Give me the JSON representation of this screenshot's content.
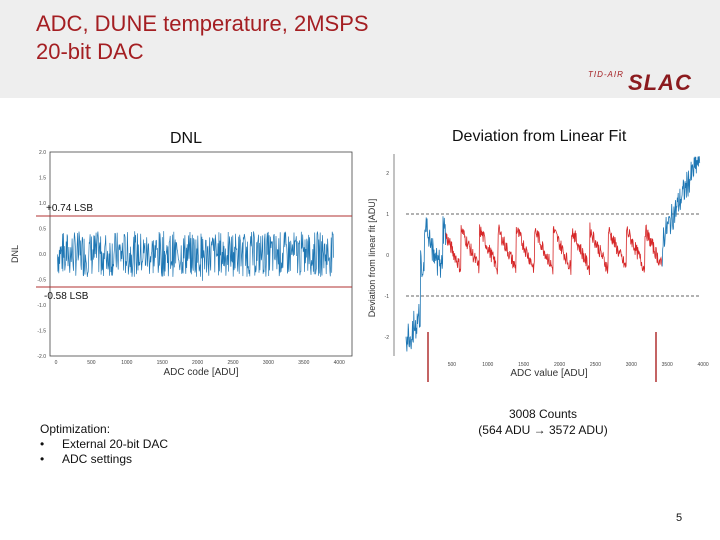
{
  "slide": {
    "title": "ADC, DUNE temperature, 2MSPS\n20-bit DAC",
    "logo_sub": "TID-AIR",
    "logo_main": "SLAC",
    "page_number": "5",
    "colors": {
      "title": "#a41e22",
      "blue": "#1f77b4",
      "red": "#d62728",
      "guide_line": "#b03030"
    }
  },
  "dnl": {
    "title": "DNL",
    "upper_label": "+0.74 LSB",
    "lower_label": "-0.58 LSB"
  },
  "fit": {
    "title": "Deviation from Linear Fit"
  },
  "notes": {
    "heading": "Optimization:",
    "items": [
      "External 20-bit DAC",
      "ADC settings"
    ]
  },
  "range": {
    "line1": "3008 Counts",
    "line2": "(564 ADU → 3572 ADU)"
  },
  "chart_data": [
    {
      "type": "line",
      "title": "DNL",
      "xlabel": "ADC code [ADU]",
      "ylabel": "DNL",
      "xlim": [
        0,
        4096
      ],
      "ylim": [
        -2.0,
        2.0
      ],
      "xticks": [
        0,
        500,
        1000,
        1500,
        2000,
        2500,
        3000,
        3500,
        4000
      ],
      "yticks": [
        -2.0,
        -1.5,
        -1.0,
        -0.5,
        0.0,
        0.5,
        1.0,
        1.5,
        2.0
      ],
      "series": [
        {
          "values_summary": "noise around 0 from 0 to 4096",
          "max": 0.74,
          "min": -0.58
        }
      ],
      "hlines": [
        0.74,
        -0.58
      ],
      "grid": false
    },
    {
      "type": "line",
      "title": "Deviation from Linear Fit",
      "xlabel": "ADC value [ADU]",
      "ylabel": "Deviation from linear fit [ADU]",
      "xlim": [
        0,
        4096
      ],
      "ylim": [
        -2.5,
        2.5
      ],
      "xticks": [
        500,
        1000,
        1500,
        2000,
        2500,
        3000,
        3500,
        4000
      ],
      "yticks": [
        -2,
        -1,
        0,
        1,
        2
      ],
      "hlines": [
        1,
        -1
      ],
      "highlight_range": [
        564,
        3572
      ],
      "grid": false
    }
  ]
}
